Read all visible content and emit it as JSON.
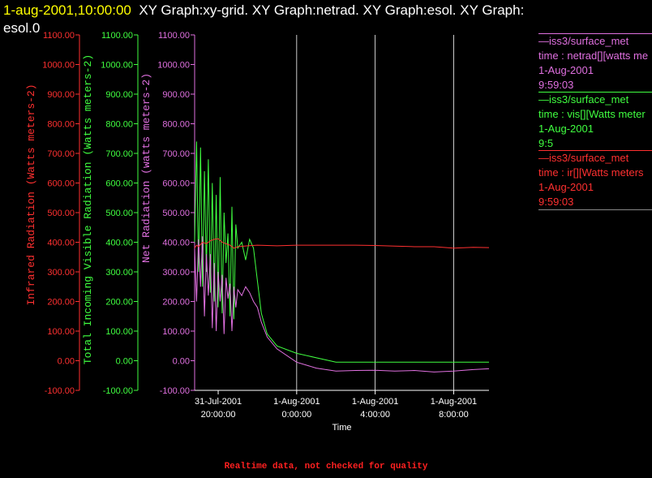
{
  "header": {
    "date": "1-aug-2001,10:00:00",
    "title_rest": "XY Graph:xy-grid.  XY Graph:netrad.  XY Graph:esol.  XY Graph:",
    "title_line2": "esol.0"
  },
  "colors": {
    "ir": "#ff3030",
    "vis": "#40ff40",
    "net": "#e070e0",
    "grid": "#ffffff",
    "date": "#ffff00"
  },
  "legend": [
    {
      "source": "—iss3/surface_met",
      "var": "time : netrad[][watts me",
      "date": "1-Aug-2001",
      "time": "9:59:03",
      "color": "#e070e0"
    },
    {
      "source": "—iss3/surface_met",
      "var": "time : vis[][Watts meter",
      "date": "1-Aug-2001",
      "time": "9:5",
      "color": "#40ff40"
    },
    {
      "source": "—iss3/surface_met",
      "var": "time : ir[][Watts meters",
      "date": "1-Aug-2001",
      "time": "9:59:03",
      "color": "#ff3030"
    }
  ],
  "footer": "Realtime data, not checked for quality",
  "chart_data": {
    "type": "line",
    "xlabel": "Time",
    "x_range_hours": [
      18.8,
      33.8
    ],
    "x_ticks": [
      {
        "hour": 20,
        "date": "31-Jul-2001",
        "time": "20:00:00"
      },
      {
        "hour": 24,
        "date": "1-Aug-2001",
        "time": "0:00:00"
      },
      {
        "hour": 28,
        "date": "1-Aug-2001",
        "time": "4:00:00"
      },
      {
        "hour": 32,
        "date": "1-Aug-2001",
        "time": "8:00:00"
      }
    ],
    "ylim": [
      -100,
      1100
    ],
    "y_ticks": [
      "-100.00",
      "0.00",
      "100.00",
      "200.00",
      "300.00",
      "400.00",
      "500.00",
      "600.00",
      "700.00",
      "800.00",
      "900.00",
      "1000.00",
      "1100.00"
    ],
    "axes": [
      {
        "label": "Infrared Radiation (Watts meters-2)",
        "color": "#ff3030"
      },
      {
        "label": "Total Incoming Visible Radiation (Watts meters-2)",
        "color": "#40ff40"
      },
      {
        "label": "Net Radiation (watts meters-2)",
        "color": "#e070e0"
      }
    ],
    "series": [
      {
        "name": "vis",
        "color": "#40ff40",
        "x": [
          18.8,
          18.9,
          19.0,
          19.1,
          19.2,
          19.3,
          19.4,
          19.5,
          19.6,
          19.7,
          19.8,
          19.9,
          20.0,
          20.1,
          20.2,
          20.3,
          20.4,
          20.5,
          20.6,
          20.7,
          20.8,
          20.9,
          21.0,
          21.2,
          21.4,
          21.6,
          21.8,
          22.0,
          22.2,
          22.5,
          23.0,
          24.0,
          26.0,
          27.0,
          28.0,
          29.0,
          30.0,
          31.0,
          32.0,
          33.0,
          33.8
        ],
        "y": [
          400,
          740,
          300,
          720,
          250,
          640,
          300,
          680,
          230,
          600,
          200,
          560,
          180,
          620,
          160,
          500,
          330,
          430,
          150,
          520,
          140,
          460,
          380,
          400,
          340,
          410,
          380,
          270,
          160,
          90,
          50,
          25,
          -5,
          -5,
          -5,
          -5,
          -5,
          -5,
          -5,
          -5,
          -5
        ]
      },
      {
        "name": "netrad",
        "color": "#e070e0",
        "x": [
          18.8,
          18.9,
          19.0,
          19.1,
          19.2,
          19.3,
          19.4,
          19.5,
          19.6,
          19.7,
          19.8,
          19.9,
          20.0,
          20.1,
          20.2,
          20.3,
          20.4,
          20.5,
          20.6,
          20.7,
          20.8,
          20.9,
          21.0,
          21.2,
          21.4,
          21.6,
          21.8,
          22.0,
          22.2,
          22.5,
          23.0,
          24.0,
          25.0,
          26.0,
          27.0,
          28.0,
          29.0,
          30.0,
          31.0,
          32.0,
          33.0,
          33.8
        ],
        "y": [
          380,
          200,
          410,
          250,
          420,
          150,
          360,
          220,
          360,
          110,
          330,
          100,
          300,
          200,
          290,
          90,
          280,
          210,
          260,
          100,
          250,
          180,
          240,
          220,
          250,
          230,
          200,
          180,
          130,
          80,
          40,
          -5,
          -25,
          -35,
          -33,
          -32,
          -35,
          -33,
          -38,
          -35,
          -30,
          -27
        ]
      },
      {
        "name": "ir",
        "color": "#ff3030",
        "x": [
          18.8,
          18.9,
          19.0,
          19.2,
          19.4,
          19.6,
          19.8,
          20.0,
          20.2,
          20.4,
          20.6,
          20.8,
          21.0,
          21.5,
          22.0,
          23.0,
          24.0,
          25.0,
          26.0,
          27.0,
          28.0,
          29.0,
          30.0,
          31.0,
          32.0,
          33.0,
          33.8
        ],
        "y": [
          380,
          390,
          385,
          400,
          395,
          405,
          410,
          412,
          400,
          395,
          390,
          380,
          385,
          388,
          390,
          388,
          390,
          390,
          390,
          390,
          389,
          387,
          385,
          385,
          380,
          383,
          382
        ]
      }
    ]
  }
}
